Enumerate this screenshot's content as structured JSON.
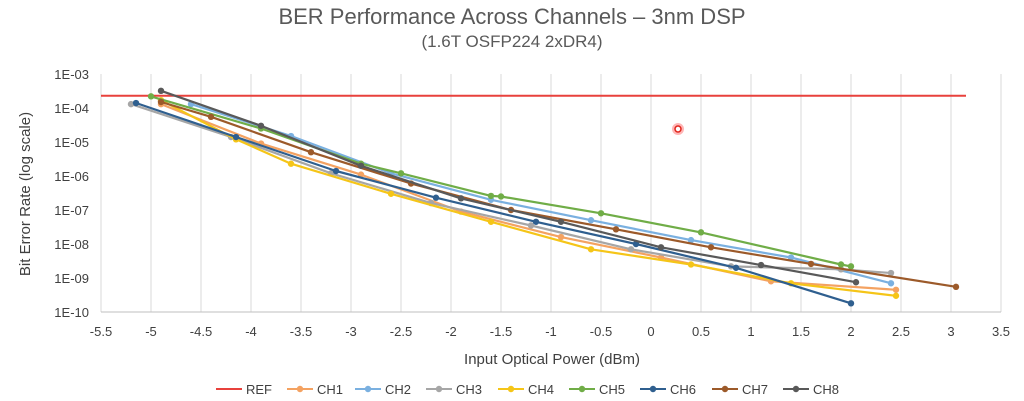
{
  "chart_data": {
    "type": "line",
    "title": "BER Performance Across Channels – 3nm DSP",
    "subtitle": "(1.6T OSFP224 2xDR4)",
    "xlabel": "Input Optical Power (dBm)",
    "ylabel": "Bit Error Rate (log scale)",
    "xlim": [
      -5.5,
      3.5
    ],
    "ylim": [
      1e-10,
      0.001
    ],
    "yscale": "log",
    "x_ticks": [
      "-5.5",
      "-5",
      "-4.5",
      "-4",
      "-3.5",
      "-3",
      "-2.5",
      "-2",
      "-1.5",
      "-1",
      "-0.5",
      "0",
      "0.5",
      "1",
      "1.5",
      "2",
      "2.5",
      "3",
      "3.5"
    ],
    "y_ticks": [
      "1E-03",
      "1E-04",
      "1E-05",
      "1E-06",
      "1E-07",
      "1E-08",
      "1E-09",
      "1E-10"
    ],
    "grid": "vertical",
    "legend_position": "bottom",
    "series": [
      {
        "name": "REF",
        "color": "#e8413c",
        "marker": false,
        "x": [
          -5.5,
          3.15
        ],
        "y": [
          0.00023,
          0.00023
        ]
      },
      {
        "name": "CH1",
        "color": "#f4a261",
        "marker": true,
        "x": [
          -4.9,
          -3.9,
          -2.9,
          -1.9,
          -0.9,
          0.1,
          1.2,
          2.45
        ],
        "y": [
          0.00013,
          9e-06,
          1.1e-06,
          9e-08,
          1.6e-08,
          4e-09,
          8e-10,
          4.5e-10
        ]
      },
      {
        "name": "CH2",
        "color": "#7ab0e0",
        "marker": true,
        "x": [
          -4.6,
          -3.6,
          -2.6,
          -1.6,
          -0.6,
          0.4,
          1.4,
          2.4
        ],
        "y": [
          0.00013,
          1.5e-05,
          1.2e-06,
          2e-07,
          5e-08,
          1.3e-08,
          4e-09,
          7e-10
        ]
      },
      {
        "name": "CH3",
        "color": "#a6a6a6",
        "marker": true,
        "x": [
          -5.2,
          -4.2,
          -3.2,
          -2.2,
          -1.2,
          -0.2,
          0.8,
          1.9,
          2.4
        ],
        "y": [
          0.00013,
          1.4e-05,
          1.2e-06,
          1.6e-07,
          3.5e-08,
          7e-09,
          2.2e-09,
          1.8e-09,
          1.4e-09
        ]
      },
      {
        "name": "CH4",
        "color": "#f5c518",
        "marker": true,
        "x": [
          -4.9,
          -4.15,
          -3.6,
          -2.6,
          -1.6,
          -0.6,
          0.4,
          1.4,
          2.45
        ],
        "y": [
          0.00017,
          1.2e-05,
          2.3e-06,
          3e-07,
          4.5e-08,
          7e-09,
          2.5e-09,
          7e-10,
          3e-10
        ]
      },
      {
        "name": "CH5",
        "color": "#70ad47",
        "marker": true,
        "x": [
          -5,
          -3.9,
          -2.9,
          -2.5,
          -1.6,
          -1.5,
          -0.5,
          0.5,
          1.9,
          2
        ],
        "y": [
          0.00022,
          2.5e-05,
          2.3e-06,
          1.2e-06,
          2.6e-07,
          2.5e-07,
          8e-08,
          2.2e-08,
          2.5e-09,
          2.2e-09
        ]
      },
      {
        "name": "CH6",
        "color": "#2f5f8f",
        "marker": true,
        "x": [
          -5.15,
          -4.15,
          -3.15,
          -2.15,
          -1.15,
          -0.15,
          0.85,
          2
        ],
        "y": [
          0.00014,
          1.4e-05,
          1.4e-06,
          2.3e-07,
          4.5e-08,
          1e-08,
          2e-09,
          1.8e-10
        ]
      },
      {
        "name": "CH7",
        "color": "#9c5a2a",
        "marker": true,
        "x": [
          -4.9,
          -4.4,
          -3.4,
          -2.4,
          -1.4,
          -0.35,
          0.6,
          1.6,
          3.05
        ],
        "y": [
          0.00015,
          5.5e-05,
          5e-06,
          6e-07,
          1e-07,
          2.7e-08,
          8e-09,
          2.6e-09,
          5.5e-10
        ]
      },
      {
        "name": "CH8",
        "color": "#595959",
        "marker": true,
        "x": [
          -4.9,
          -3.9,
          -2.9,
          -1.9,
          -0.9,
          0.1,
          1.1,
          2.05
        ],
        "y": [
          0.00032,
          3e-05,
          2e-06,
          2.2e-07,
          4.5e-08,
          8e-09,
          2.4e-09,
          7.5e-10
        ]
      }
    ]
  }
}
